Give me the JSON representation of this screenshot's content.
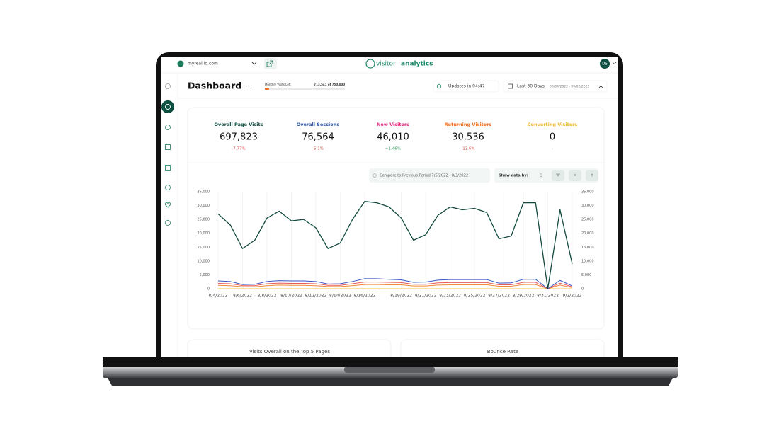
{
  "header": {
    "site": "myreal.id.com",
    "logo_a": "visitor",
    "logo_b": "analytics",
    "avatar": "DS"
  },
  "toolbar": {
    "title": "Dashboard",
    "more": "···",
    "quota_label": "Monthly Visits Left",
    "quota_value": "713,541 of 750,000",
    "updates": "Updates in 04:47",
    "range": "Last 30 Days",
    "dates": "08/04/2022 - 09/02/2022"
  },
  "stats": [
    {
      "label": "Overall Page Visits",
      "value": "697,823",
      "change": "-7.77%",
      "color": "#0d4f41",
      "change_color": "#e04646"
    },
    {
      "label": "Overall Sessions",
      "value": "76,564",
      "change": "-5.1%",
      "color": "#2b55a8",
      "change_color": "#e04646"
    },
    {
      "label": "New Visitors",
      "value": "46,010",
      "change": "+1.46%",
      "color": "#e0267a",
      "change_color": "#2a9a5a"
    },
    {
      "label": "Returning Visitors",
      "value": "30,536",
      "change": "-13.6%",
      "color": "#ef6c1a",
      "change_color": "#e04646"
    },
    {
      "label": "Converting Visitors",
      "value": "0",
      "change": "-",
      "color": "#f2b630",
      "change_color": "#999999"
    }
  ],
  "controls": {
    "compare": "Compare to Previous Period 7/5/2022 - 8/3/2022",
    "show_by": "Show data by:",
    "periods": [
      "D",
      "W",
      "M",
      "Y"
    ]
  },
  "chart_data": {
    "type": "line",
    "categories": [
      "8/4/2022",
      null,
      "8/6/2022",
      null,
      "8/8/2022",
      null,
      "8/10/2022",
      null,
      "8/12/2022",
      null,
      "8/14/2022",
      null,
      "8/16/2022",
      null,
      null,
      "8/19/2022",
      null,
      "8/21/2022",
      null,
      "8/23/2022",
      null,
      "8/25/2022",
      null,
      "8/27/2022",
      null,
      "8/29/2022",
      null,
      "8/31/2022",
      null,
      "9/2/2022"
    ],
    "series": [
      {
        "color": "#11493d",
        "values": [
          27000,
          23000,
          14500,
          17500,
          25500,
          28000,
          24500,
          25000,
          22000,
          14500,
          16500,
          25000,
          31500,
          31000,
          29500,
          25500,
          17500,
          19500,
          26500,
          29500,
          28500,
          29000,
          27500,
          18000,
          19000,
          31000,
          31000,
          0,
          28500,
          9000
        ]
      },
      {
        "color": "#3a55c4",
        "values": [
          2800,
          2600,
          1500,
          1600,
          2600,
          2900,
          2800,
          2800,
          2600,
          1700,
          1800,
          2600,
          3600,
          3600,
          3400,
          3200,
          2300,
          2400,
          3100,
          3300,
          3300,
          3300,
          3300,
          2000,
          2100,
          3400,
          3400,
          0,
          3000,
          1000
        ]
      },
      {
        "color": "#e85a5a",
        "values": [
          1900,
          1800,
          1100,
          1100,
          1800,
          2000,
          1900,
          1900,
          1800,
          1200,
          1200,
          1800,
          2400,
          2400,
          2300,
          2200,
          1600,
          1600,
          2100,
          2200,
          2200,
          2200,
          2200,
          1400,
          1400,
          2300,
          2300,
          0,
          2000,
          700
        ]
      },
      {
        "color": "#f08a3a",
        "values": [
          1200,
          1100,
          700,
          700,
          1100,
          1300,
          1200,
          1200,
          1100,
          800,
          800,
          1100,
          1500,
          1500,
          1400,
          1400,
          1000,
          1000,
          1300,
          1400,
          1400,
          1400,
          1400,
          900,
          900,
          1500,
          1500,
          0,
          1300,
          400
        ]
      },
      {
        "color": "#f4c542",
        "values": [
          0,
          0,
          0,
          0,
          0,
          0,
          0,
          0,
          0,
          0,
          0,
          0,
          0,
          0,
          0,
          0,
          0,
          0,
          0,
          0,
          0,
          0,
          0,
          0,
          0,
          0,
          0,
          0,
          0,
          0
        ]
      }
    ],
    "ylim": [
      0,
      35000
    ],
    "yticks": [
      0,
      {
        "value": 5000,
        "label": "5,000"
      },
      {
        "value": 10000,
        "label": "10,000"
      },
      {
        "value": 15000,
        "label": "15,000"
      },
      {
        "value": 20000,
        "label": "20,000"
      },
      {
        "value": 25000,
        "label": "25,000"
      },
      {
        "value": 30000,
        "label": "30,000"
      },
      {
        "value": 35000,
        "label": "35,000"
      }
    ],
    "y2lim": [
      0,
      35000
    ],
    "y2ticks": [
      0,
      {
        "value": 5000,
        "label": "5,000"
      },
      {
        "value": 10000,
        "label": "10,000"
      },
      {
        "value": 15000,
        "label": "15,000"
      },
      {
        "value": 20000,
        "label": "20,000"
      },
      {
        "value": 25000,
        "label": "25,000"
      },
      {
        "value": 30000,
        "label": "30,000"
      },
      {
        "value": 35000,
        "label": "35,000"
      }
    ],
    "grid": "x"
  },
  "panels": [
    "Visits Overall on the Top 5 Pages",
    "Bounce Rate"
  ]
}
